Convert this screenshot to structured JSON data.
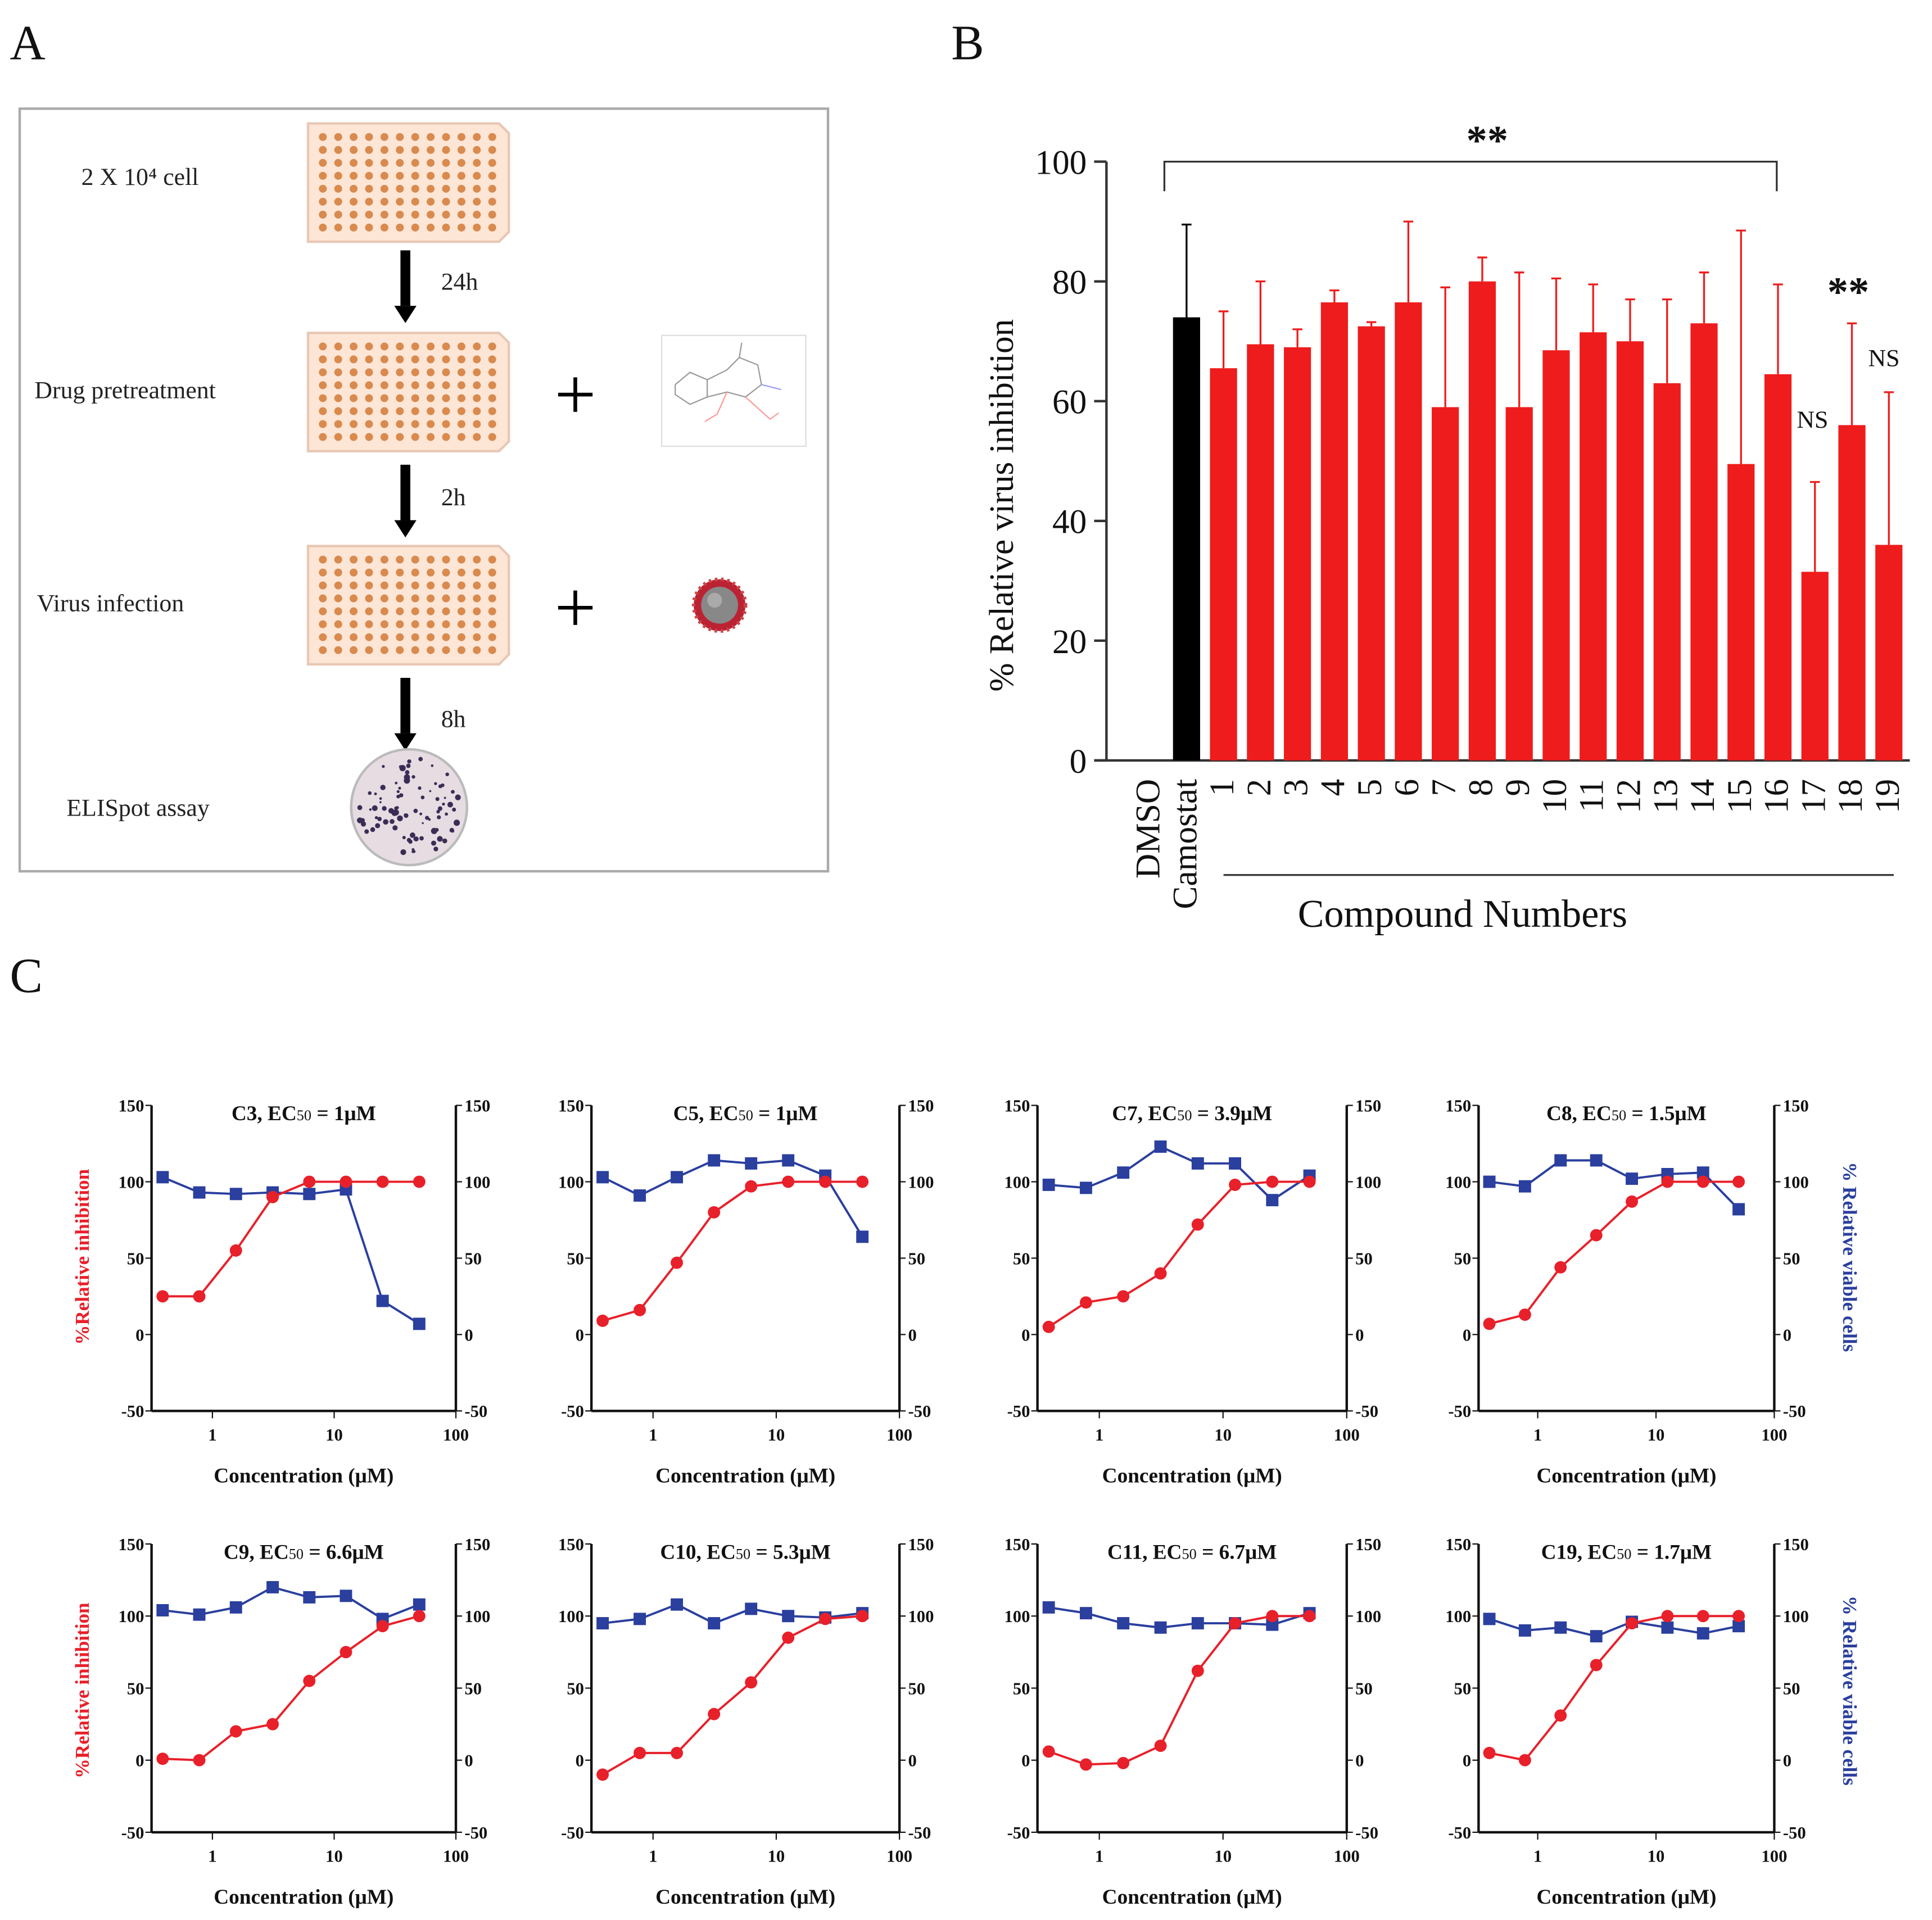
{
  "panels": {
    "a": "A",
    "b": "B",
    "c": "C"
  },
  "panel_a": {
    "steps": [
      "2 X 10⁴ cell",
      "Drug pretreatment",
      "Virus infection",
      "ELISpot assay"
    ],
    "times": [
      "24h",
      "2h",
      "8h"
    ],
    "plus": "+",
    "colors": {
      "plate": "#fde6d6",
      "well": "#d98a4e",
      "virus": "#c0392b"
    }
  },
  "chart_data": [
    {
      "type": "bar",
      "ylabel": "% Relative virus inhibition",
      "xlabel": "Compound Numbers",
      "ylim": [
        0,
        100
      ],
      "yticks": [
        0,
        20,
        40,
        60,
        80,
        100
      ],
      "categories": [
        "DMSO",
        "Camostat",
        "1",
        "2",
        "3",
        "4",
        "5",
        "6",
        "7",
        "8",
        "9",
        "10",
        "11",
        "12",
        "13",
        "14",
        "15",
        "16",
        "17",
        "18",
        "19"
      ],
      "values": [
        0,
        74,
        65.5,
        69.5,
        69,
        76.5,
        72.5,
        76.5,
        59,
        80,
        59,
        68.5,
        71.5,
        70,
        63,
        73,
        49.5,
        64.5,
        31.5,
        56,
        36
      ],
      "error_upper": [
        0,
        89.5,
        75,
        80,
        72,
        78.5,
        73.2,
        90,
        79,
        84,
        81.5,
        80.5,
        79.5,
        77,
        77,
        81.5,
        88.5,
        79.5,
        46.5,
        73,
        61.5
      ],
      "colors": {
        "control": "#000000",
        "compound": "#ee1c1c"
      },
      "annotations": {
        "bracket": "**",
        "c18": "**",
        "c17": "NS",
        "c19": "NS"
      }
    },
    {
      "type": "line",
      "title_prefix": "C3,  EC",
      "title_sub": "50",
      "title_suffix": " = 1μM",
      "x": [
        0.39,
        0.78,
        1.56,
        3.125,
        6.25,
        12.5,
        25,
        50
      ],
      "inhibition": [
        25,
        25,
        55,
        90,
        100,
        100,
        100,
        100
      ],
      "viability": [
        103,
        93,
        92,
        93,
        92,
        95,
        22,
        7
      ]
    },
    {
      "type": "line",
      "title_prefix": "C5, EC",
      "title_sub": "50",
      "title_suffix": " =  1μM",
      "x": [
        0.39,
        0.78,
        1.56,
        3.125,
        6.25,
        12.5,
        25,
        50
      ],
      "inhibition": [
        9,
        16,
        47,
        80,
        97,
        100,
        100,
        100
      ],
      "viability": [
        103,
        91,
        103,
        114,
        112,
        114,
        104,
        64
      ]
    },
    {
      "type": "line",
      "title_prefix": "C7, EC",
      "title_sub": "50",
      "title_suffix": " = 3.9μM",
      "x": [
        0.39,
        0.78,
        1.56,
        3.125,
        6.25,
        12.5,
        25,
        50
      ],
      "inhibition": [
        5,
        21,
        25,
        40,
        72,
        98,
        100,
        100
      ],
      "viability": [
        98,
        96,
        106,
        123,
        112,
        112,
        88,
        104
      ]
    },
    {
      "type": "line",
      "title_prefix": "C8, EC",
      "title_sub": "50",
      "title_suffix": " = 1.5μM",
      "x": [
        0.39,
        0.78,
        1.56,
        3.125,
        6.25,
        12.5,
        25,
        50
      ],
      "inhibition": [
        7,
        13,
        44,
        65,
        87,
        100,
        100,
        100
      ],
      "viability": [
        100,
        97,
        114,
        114,
        102,
        105,
        106,
        82
      ]
    },
    {
      "type": "line",
      "title_prefix": "C9, EC",
      "title_sub": "50",
      "title_suffix": " = 6.6μM",
      "x": [
        0.39,
        0.78,
        1.56,
        3.125,
        6.25,
        12.5,
        25,
        50
      ],
      "inhibition": [
        1,
        0,
        20,
        25,
        55,
        75,
        93,
        100
      ],
      "viability": [
        104,
        101,
        106,
        120,
        113,
        114,
        98,
        108
      ]
    },
    {
      "type": "line",
      "title_prefix": "C10, EC",
      "title_sub": "50",
      "title_suffix": " = 5.3μM",
      "x": [
        0.39,
        0.78,
        1.56,
        3.125,
        6.25,
        12.5,
        25,
        50
      ],
      "inhibition": [
        -10,
        5,
        5,
        32,
        54,
        85,
        98,
        100
      ],
      "viability": [
        95,
        98,
        108,
        95,
        105,
        100,
        99,
        102
      ]
    },
    {
      "type": "line",
      "title_prefix": "C11, EC",
      "title_sub": "50",
      "title_suffix": " = 6.7μM",
      "x": [
        0.39,
        0.78,
        1.56,
        3.125,
        6.25,
        12.5,
        25,
        50
      ],
      "inhibition": [
        6,
        -3,
        -2,
        10,
        62,
        95,
        100,
        100
      ],
      "viability": [
        106,
        102,
        95,
        92,
        95,
        95,
        94,
        102
      ]
    },
    {
      "type": "line",
      "title_prefix": "C19, EC",
      "title_sub": "50",
      "title_suffix": " = 1.7μM",
      "x": [
        0.39,
        0.78,
        1.56,
        3.125,
        6.25,
        12.5,
        25,
        50
      ],
      "inhibition": [
        5,
        0,
        31,
        66,
        95,
        100,
        100,
        100
      ],
      "viability": [
        98,
        90,
        92,
        86,
        96,
        92,
        88,
        93
      ]
    }
  ],
  "panel_c": {
    "xlabel": "Concentration (μM)",
    "ylabel_left": "%Relative inhibition",
    "ylabel_right": "% Relative viable cells",
    "xscale": "log",
    "xlim": [
      0.316,
      100
    ],
    "xticks": [
      "1",
      "10",
      "100"
    ],
    "ylim": [
      -50,
      150
    ],
    "yticks": [
      "-50",
      "0",
      "50",
      "100",
      "150"
    ],
    "colors": {
      "inhibition": "#e8202a",
      "viability": "#2a3f9e"
    }
  }
}
